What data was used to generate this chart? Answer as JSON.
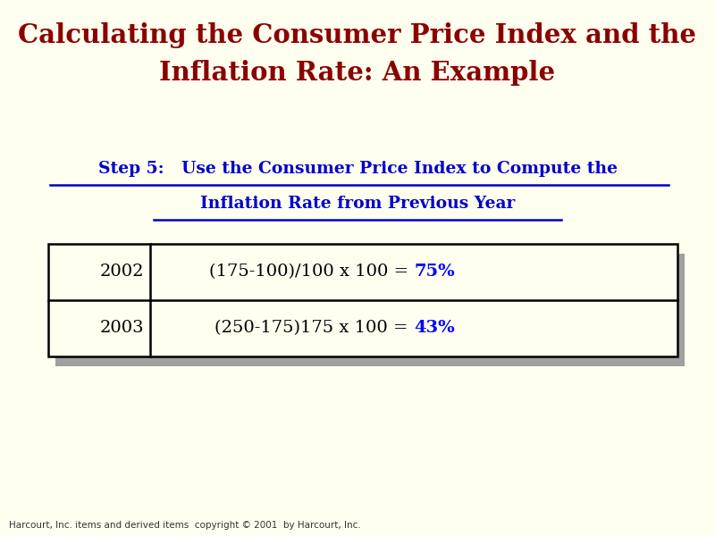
{
  "title_line1": "Calculating the Consumer Price Index and the",
  "title_line2": "Inflation Rate: An Example",
  "title_color": "#8B0000",
  "background_color": "#FFFFF0",
  "step_line1": "Step 5:   Use the Consumer Price Index to Compute the",
  "step_line2": "Inflation Rate from Previous Year",
  "step_color": "#0000CC",
  "rows": [
    {
      "year": "2002",
      "formula_plain": "(175-100)/100 x 100 = ",
      "formula_bold": "75%"
    },
    {
      "year": "2003",
      "formula_plain": "(250-175)175 x 100 = ",
      "formula_bold": "43%"
    }
  ],
  "year_color": "#000000",
  "formula_color": "#000000",
  "bold_color": "#0000FF",
  "table_bg": "#FFFFF0",
  "shadow_color": "#A0A0A0",
  "copyright": "Harcourt, Inc. items and derived items  copyright © 2001  by Harcourt, Inc."
}
